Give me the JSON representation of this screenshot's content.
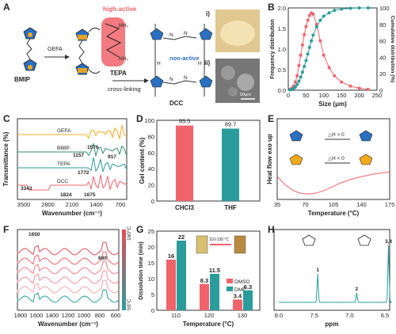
{
  "panels": {
    "A": {
      "label": "A",
      "bmip": "BMIP",
      "gefa": "GEFA",
      "high_active": "high-active",
      "tepa": "TEPA",
      "non_active": "non-active",
      "cross_linking": "cross-linking",
      "dcc": "DCC",
      "photo_i": "i)",
      "photo_ii": "ii)",
      "scale": "50μm"
    },
    "B": {
      "label": "B"
    },
    "C": {
      "label": "C"
    },
    "D": {
      "label": "D"
    },
    "E": {
      "label": "E"
    },
    "F": {
      "label": "F"
    },
    "G": {
      "label": "G"
    },
    "H": {
      "label": "H"
    }
  },
  "colors": {
    "red": "#f0636a",
    "teal": "#2a9c9c",
    "orange": "#f5a91a",
    "green": "#2f8f6f"
  },
  "chart_data": [
    {
      "id": "B",
      "type": "line",
      "xlabel": "Size (μm)",
      "ylabel": "Frequency distribution",
      "y2label": "Cumulative distribution (%)",
      "xlim": [
        0,
        250
      ],
      "ylim": [
        0,
        2.0
      ],
      "y2lim": [
        0,
        100
      ],
      "xticks": [
        "0",
        "50",
        "100",
        "150",
        "200",
        "250"
      ],
      "yticks": [
        "0.0",
        "0.5",
        "1.0",
        "1.5",
        "2.0"
      ],
      "y2ticks": [
        "0",
        "20",
        "40",
        "60",
        "80",
        "100"
      ],
      "series": [
        {
          "axis": "left",
          "color": "#f0636a",
          "x": [
            5,
            10,
            15,
            20,
            25,
            30,
            35,
            40,
            45,
            50,
            55,
            60,
            65,
            70,
            80,
            90,
            100,
            115,
            130,
            150,
            175,
            200,
            225
          ],
          "y": [
            0.02,
            0.05,
            0.1,
            0.2,
            0.35,
            0.6,
            0.85,
            1.1,
            1.35,
            1.55,
            1.7,
            1.82,
            1.88,
            1.85,
            1.6,
            1.2,
            0.85,
            0.55,
            0.35,
            0.2,
            0.1,
            0.05,
            0.02
          ]
        },
        {
          "axis": "right",
          "color": "#2a9c9c",
          "x": [
            5,
            10,
            15,
            20,
            25,
            30,
            35,
            40,
            45,
            50,
            55,
            60,
            65,
            70,
            80,
            90,
            100,
            115,
            130,
            150,
            175,
            200,
            225
          ],
          "y": [
            0.5,
            1,
            2,
            4,
            7,
            11,
            16,
            22,
            29,
            36,
            44,
            52,
            60,
            67,
            77,
            85,
            90,
            94,
            97,
            98.5,
            99.5,
            100,
            100
          ]
        }
      ]
    },
    {
      "id": "C",
      "type": "line",
      "xlabel": "Wavenumber (cm⁻¹)",
      "ylabel": "Transmittance (%)",
      "xticks": [
        "3500",
        "2800",
        "2100",
        "1400",
        "700"
      ],
      "series": [
        {
          "name": "GEFA",
          "color": "#f5a91a"
        },
        {
          "name": "BMIP",
          "color": "#2f8f6f"
        },
        {
          "name": "TEPA",
          "color": "#2a9c9c"
        },
        {
          "name": "DCC",
          "color": "#f0636a"
        }
      ],
      "annotations": [
        "1576",
        "1157",
        "917",
        "1772",
        "3343",
        "1824",
        "1675"
      ]
    },
    {
      "id": "D",
      "type": "bar",
      "ylabel": "Gel content (%)",
      "categories": [
        "CHCl3",
        "THF"
      ],
      "values": [
        93.5,
        89.7
      ],
      "ylim": [
        0,
        100
      ],
      "yticks": [
        "0",
        "20",
        "40",
        "60",
        "80",
        "100"
      ]
    },
    {
      "id": "E",
      "type": "line",
      "xlabel": "Temperature (°C)",
      "ylabel": "Heat flow exo up",
      "xlim": [
        35,
        175
      ],
      "xticks": [
        "35",
        "70",
        "105",
        "140",
        "175"
      ],
      "notes": [
        "△H > 0",
        "△H < 0"
      ],
      "series": [
        {
          "color": "#f0636a",
          "x": [
            35,
            45,
            55,
            65,
            75,
            85,
            95,
            105,
            115,
            125,
            135,
            145,
            155,
            165,
            175
          ],
          "y": [
            0.7,
            0.4,
            0.2,
            0.1,
            0.08,
            0.12,
            0.22,
            0.35,
            0.48,
            0.58,
            0.66,
            0.72,
            0.78,
            0.82,
            0.85
          ]
        }
      ]
    },
    {
      "id": "F",
      "type": "line",
      "xlabel": "Wavenumber (cm⁻¹)",
      "xticks": [
        "1800",
        "1600",
        "1400",
        "1200",
        "1000",
        "800",
        "600"
      ],
      "colorbar": [
        "160°C",
        "50°C"
      ],
      "annotations": [
        "1650",
        "680"
      ]
    },
    {
      "id": "G",
      "type": "bar",
      "xlabel": "Temperature (°C)",
      "ylabel": "Dissolution time (min)",
      "categories": [
        "110",
        "120",
        "130"
      ],
      "series": [
        {
          "name": "DMSO",
          "color": "#f0636a",
          "values": [
            16,
            8.3,
            3.4
          ]
        },
        {
          "name": "DMF",
          "color": "#2a9c9c",
          "values": [
            22,
            11.5,
            6.3
          ]
        }
      ],
      "ylim": [
        0,
        25
      ],
      "yticks": [
        "0",
        "5",
        "10",
        "15",
        "20",
        "25"
      ],
      "inset_label": "110-130 °C"
    },
    {
      "id": "H",
      "type": "line",
      "xlabel": "ppm",
      "xlim": [
        8.0,
        6.5
      ],
      "xticks": [
        "8.0",
        "7.5",
        "7.0",
        "6.5"
      ],
      "peaks": [
        {
          "label": "1",
          "ppm": 7.45,
          "height": 0.45
        },
        {
          "label": "2",
          "ppm": 6.9,
          "height": 0.15
        },
        {
          "label": "3,4",
          "ppm": 6.45,
          "height": 0.9
        }
      ]
    }
  ]
}
